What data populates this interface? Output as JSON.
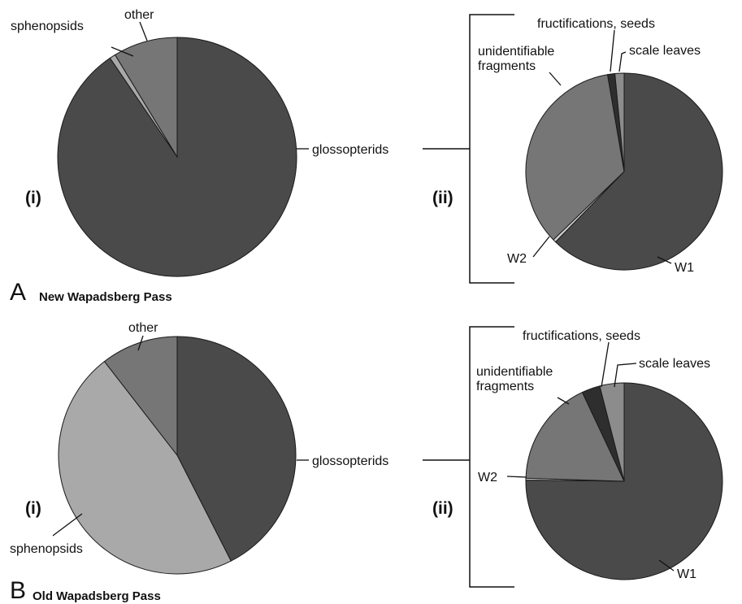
{
  "colors": {
    "glossopterids": "#4a4a4a",
    "sphenopsids": "#a9a9a9",
    "other": "#767676",
    "W1": "#4a4a4a",
    "W2": "#cfcfcf",
    "unidentifiable fragments": "#767676",
    "fructifications, seeds": "#2e2e2e",
    "scale leaves": "#8c8c8c"
  },
  "chart_data": [
    {
      "type": "pie",
      "panel": "A",
      "subpanel": "(i)",
      "panel_title": "New Wapadsberg Pass",
      "slices": [
        {
          "label": "glossopterids",
          "value": 90.5
        },
        {
          "label": "sphenopsids",
          "value": 0.8
        },
        {
          "label": "other",
          "value": 8.7
        }
      ]
    },
    {
      "type": "pie",
      "panel": "A",
      "subpanel": "(ii)",
      "breakdown_of": "glossopterids",
      "slices": [
        {
          "label": "W1",
          "value": 62.3
        },
        {
          "label": "W2",
          "value": 0.5
        },
        {
          "label": "unidentifiable fragments",
          "value": 34.5
        },
        {
          "label": "fructifications, seeds",
          "value": 1.2
        },
        {
          "label": "scale leaves",
          "value": 1.5
        }
      ]
    },
    {
      "type": "pie",
      "panel": "B",
      "subpanel": "(i)",
      "panel_title": "Old Wapadsberg Pass",
      "slices": [
        {
          "label": "glossopterids",
          "value": 42.5
        },
        {
          "label": "sphenopsids",
          "value": 47.0
        },
        {
          "label": "other",
          "value": 10.5
        }
      ]
    },
    {
      "type": "pie",
      "panel": "B",
      "subpanel": "(ii)",
      "breakdown_of": "glossopterids",
      "slices": [
        {
          "label": "W1",
          "value": 75.2
        },
        {
          "label": "W2",
          "value": 0.3
        },
        {
          "label": "unidentifiable fragments",
          "value": 17.5
        },
        {
          "label": "fructifications, seeds",
          "value": 3.0
        },
        {
          "label": "scale leaves",
          "value": 4.0
        }
      ]
    }
  ],
  "labels": {
    "a_i": {
      "sphenopsids": "sphenopsids",
      "other": "other",
      "glossopterids": "glossopterids",
      "sub": "(i)"
    },
    "a_ii": {
      "fructifications": "fructifications, seeds",
      "scale": "scale leaves",
      "unident_1": "unidentifiable",
      "unident_2": "fragments",
      "w2": "W2",
      "w1": "W1",
      "sub": "(ii)"
    },
    "a_panel": {
      "letter": "A",
      "title": "New Wapadsberg Pass"
    },
    "b_i": {
      "other": "other",
      "glossopterids": "glossopterids",
      "sphenopsids": "sphenopsids",
      "sub": "(i)"
    },
    "b_ii": {
      "fructifications": "fructifications, seeds",
      "scale": "scale leaves",
      "unident_1": "unidentifiable",
      "unident_2": "fragments",
      "w2": "W2",
      "w1": "W1",
      "sub": "(ii)"
    },
    "b_panel": {
      "letter": "B",
      "title": "Old Wapadsberg Pass"
    }
  }
}
